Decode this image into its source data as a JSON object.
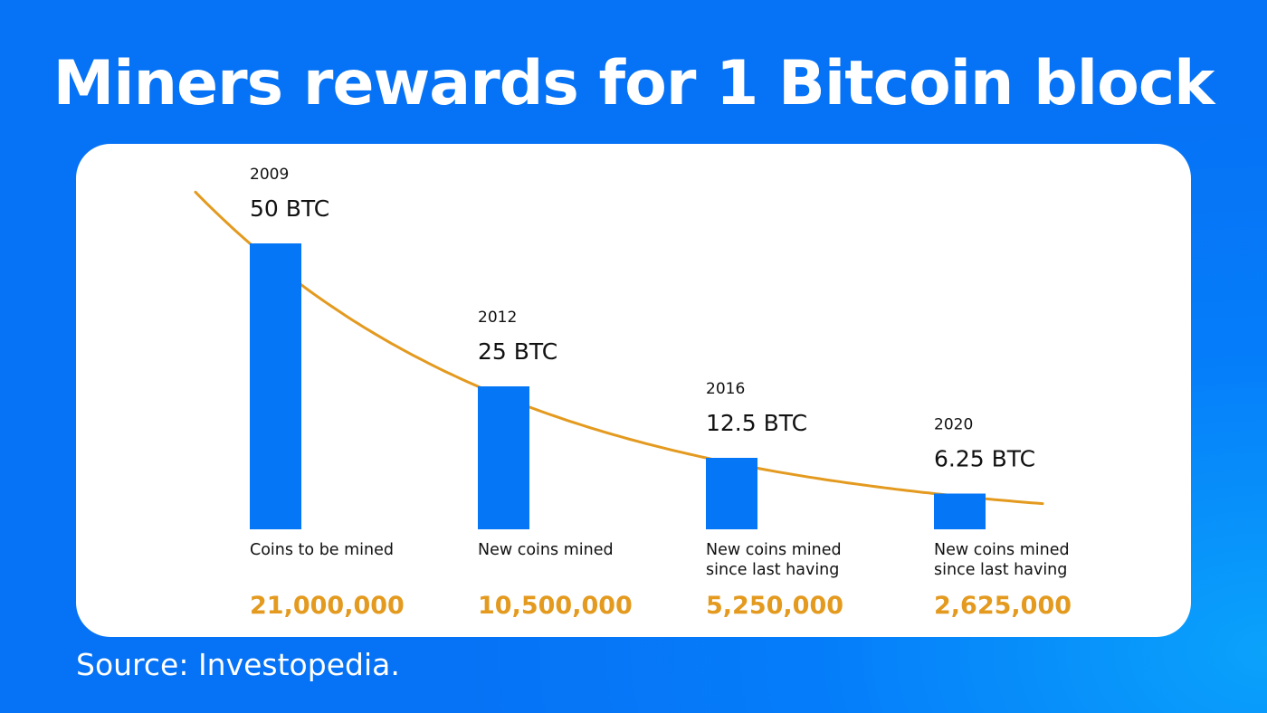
{
  "title": "Miners rewards for 1 Bitcoin block",
  "source": "Source: Investopedia.",
  "colors": {
    "bar": "#0576f6",
    "curve": "#e39a1f",
    "accent": "#e39a1f",
    "text": "#111111"
  },
  "chart_data": {
    "type": "bar",
    "categories": [
      "2009",
      "2012",
      "2016",
      "2020"
    ],
    "series": [
      {
        "values": [
          50,
          25,
          12.5,
          6.25
        ]
      }
    ],
    "value_labels": [
      "50 BTC",
      "25 BTC",
      "12.5 BTC",
      "6.25 BTC"
    ],
    "captions": [
      [
        "Coins to be mined"
      ],
      [
        "New coins mined"
      ],
      [
        "New coins mined",
        "since last having"
      ],
      [
        "New coins mined",
        "since last having"
      ]
    ],
    "totals": [
      "21,000,000",
      "10,500,000",
      "5,250,000",
      "2,625,000"
    ],
    "ylim": [
      0,
      50
    ],
    "grid": false,
    "trend_curve": true
  }
}
